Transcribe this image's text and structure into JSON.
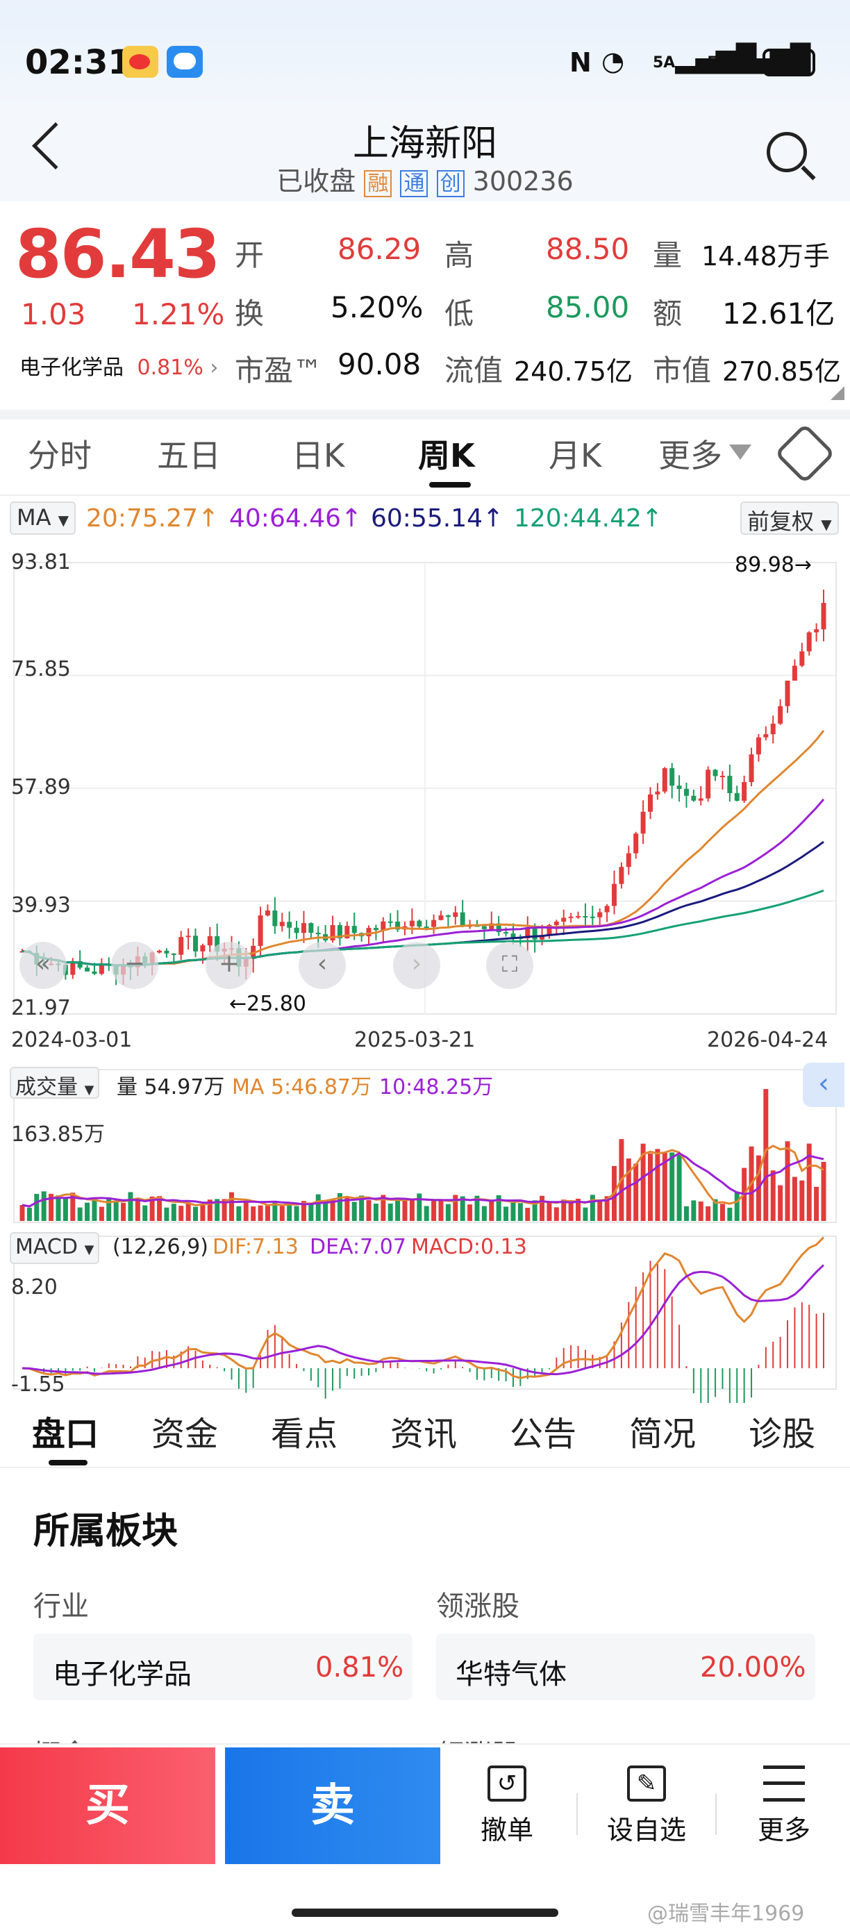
{
  "status": {
    "time": "02:31",
    "battery": "75",
    "sig1": "6",
    "sig2": "5A",
    "sig3": "5A"
  },
  "header": {
    "title": "上海新阳",
    "status": "已收盘",
    "badges": [
      "融",
      "通",
      "创"
    ],
    "code": "300236"
  },
  "quote": {
    "price": "86.43",
    "change": "1.03",
    "pct": "1.21%",
    "sector": "电子化学品",
    "sector_pct": "0.81%",
    "rows": [
      [
        {
          "k": "开",
          "v": "86.29",
          "c": "red"
        },
        {
          "k": "高",
          "v": "88.50",
          "c": "red"
        },
        {
          "k": "量",
          "v": "14.48万手",
          "c": "black"
        }
      ],
      [
        {
          "k": "换",
          "v": "5.20%",
          "c": "black"
        },
        {
          "k": "低",
          "v": "85.00",
          "c": "green"
        },
        {
          "k": "额",
          "v": "12.61亿",
          "c": "black"
        }
      ],
      [
        {
          "k": "市盈™",
          "v": "90.08",
          "c": "black"
        },
        {
          "k": "流值",
          "v": "240.75亿",
          "c": "black"
        },
        {
          "k": "市值",
          "v": "270.85亿",
          "c": "black"
        }
      ]
    ]
  },
  "tabs": [
    "分时",
    "五日",
    "日K",
    "周K",
    "月K",
    "更多"
  ],
  "ma": {
    "label": "MA",
    "m20": "20:75.27↑",
    "m40": "40:64.46↑",
    "m60": "60:55.14↑",
    "m120": "120:44.42↑",
    "adj": "前复权"
  },
  "chart_data": {
    "type": "candlestick",
    "y_ticks": [
      "93.81",
      "75.85",
      "57.89",
      "39.93",
      "21.97"
    ],
    "ylim": [
      21.97,
      93.81
    ],
    "x_ticks": [
      "2024-03-01",
      "2025-03-21",
      "2026-04-24"
    ],
    "high_label": "89.98→",
    "low_label": "←25.80",
    "volume": {
      "label": "成交量",
      "v": "量 54.97万",
      "ma5": "MA 5:46.87万",
      "ma10": "10:48.25万",
      "max": "163.85万"
    },
    "macd": {
      "label": "MACD",
      "params": "(12,26,9)",
      "dif": "DIF:7.13",
      "dea": "DEA:7.07",
      "macd": "MACD:0.13",
      "top": "8.20",
      "bottom": "-1.55"
    }
  },
  "ftabs": [
    "盘口",
    "资金",
    "看点",
    "资讯",
    "公告",
    "简况",
    "诊股"
  ],
  "sectors": {
    "title": "所属板块",
    "industry_label": "行业",
    "leader_label": "领涨股",
    "industry": "电子化学品",
    "industry_pct": "0.81%",
    "leader": "华特气体",
    "leader_pct": "20.00%",
    "concept_label": "概念",
    "leader2_label": "领涨股"
  },
  "bottom": {
    "buy": "买",
    "sell": "卖",
    "cancel": "撤单",
    "watch": "设自选",
    "more": "更多"
  },
  "watermark": "@瑞雪丰年1969"
}
